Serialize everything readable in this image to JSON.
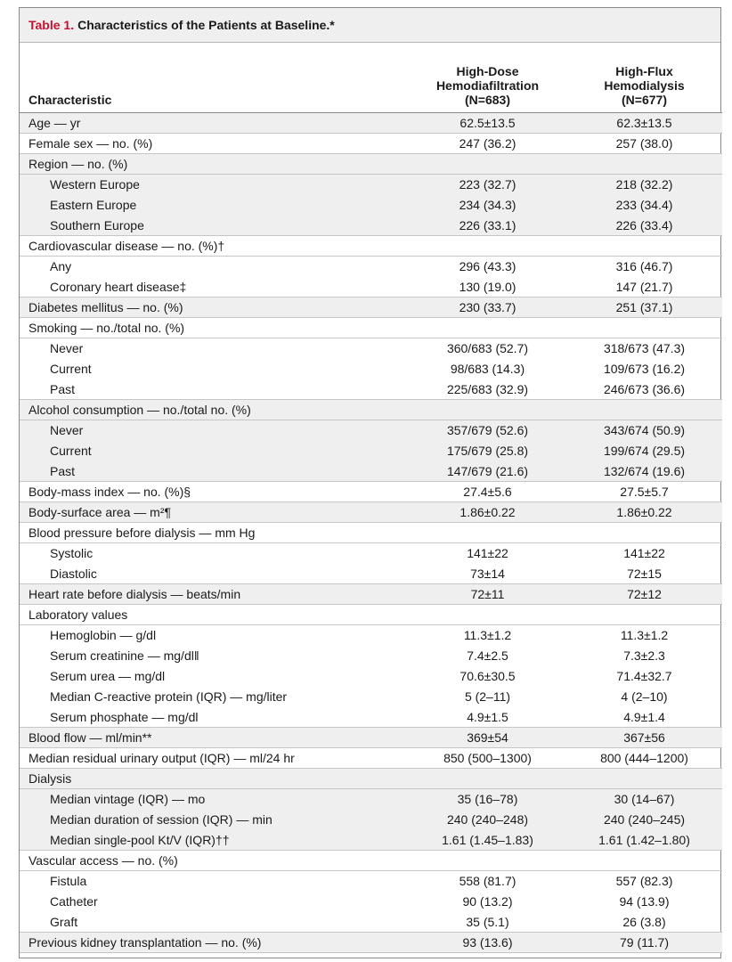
{
  "title": {
    "number": "Table 1.",
    "text": "Characteristics of the Patients at Baseline.*"
  },
  "header": {
    "characteristic": "Characteristic",
    "col1": [
      "High-Dose",
      "Hemodiafiltration",
      "(N=683)"
    ],
    "col2": [
      "High-Flux",
      "Hemodialysis",
      "(N=677)"
    ]
  },
  "rows": [
    {
      "label": "Age — yr",
      "v1": "62.5±13.5",
      "v2": "62.3±13.5",
      "indent": false
    },
    {
      "label": "Female sex — no. (%)",
      "v1": "247 (36.2)",
      "v2": "257 (38.0)",
      "indent": false
    },
    {
      "label": "Region — no. (%)",
      "v1": "",
      "v2": "",
      "indent": false
    },
    {
      "label": "Western Europe",
      "v1": "223 (32.7)",
      "v2": "218 (32.2)",
      "indent": true
    },
    {
      "label": "Eastern Europe",
      "v1": "234 (34.3)",
      "v2": "233 (34.4)",
      "indent": true
    },
    {
      "label": "Southern Europe",
      "v1": "226 (33.1)",
      "v2": "226 (33.4)",
      "indent": true
    },
    {
      "label": "Cardiovascular disease — no. (%)†",
      "v1": "",
      "v2": "",
      "indent": false
    },
    {
      "label": "Any",
      "v1": "296 (43.3)",
      "v2": "316 (46.7)",
      "indent": true
    },
    {
      "label": "Coronary heart disease‡",
      "v1": "130 (19.0)",
      "v2": "147 (21.7)",
      "indent": true
    },
    {
      "label": "Diabetes mellitus — no. (%)",
      "v1": "230 (33.7)",
      "v2": "251 (37.1)",
      "indent": false
    },
    {
      "label": "Smoking — no./total no. (%)",
      "v1": "",
      "v2": "",
      "indent": false
    },
    {
      "label": "Never",
      "v1": "360/683 (52.7)",
      "v2": "318/673 (47.3)",
      "indent": true
    },
    {
      "label": "Current",
      "v1": "98/683 (14.3)",
      "v2": "109/673 (16.2)",
      "indent": true
    },
    {
      "label": "Past",
      "v1": "225/683 (32.9)",
      "v2": "246/673 (36.6)",
      "indent": true
    },
    {
      "label": "Alcohol consumption — no./total no. (%)",
      "v1": "",
      "v2": "",
      "indent": false
    },
    {
      "label": "Never",
      "v1": "357/679 (52.6)",
      "v2": "343/674 (50.9)",
      "indent": true
    },
    {
      "label": "Current",
      "v1": "175/679 (25.8)",
      "v2": "199/674 (29.5)",
      "indent": true
    },
    {
      "label": "Past",
      "v1": "147/679 (21.6)",
      "v2": "132/674 (19.6)",
      "indent": true
    },
    {
      "label": "Body-mass index — no. (%)§",
      "v1": "27.4±5.6",
      "v2": "27.5±5.7",
      "indent": false
    },
    {
      "label": "Body-surface area — m²¶",
      "v1": "1.86±0.22",
      "v2": "1.86±0.22",
      "indent": false
    },
    {
      "label": "Blood pressure before dialysis — mm Hg",
      "v1": "",
      "v2": "",
      "indent": false
    },
    {
      "label": "Systolic",
      "v1": "141±22",
      "v2": "141±22",
      "indent": true
    },
    {
      "label": "Diastolic",
      "v1": "73±14",
      "v2": "72±15",
      "indent": true
    },
    {
      "label": "Heart rate before dialysis — beats/min",
      "v1": "72±11",
      "v2": "72±12",
      "indent": false
    },
    {
      "label": "Laboratory values",
      "v1": "",
      "v2": "",
      "indent": false
    },
    {
      "label": "Hemoglobin — g/dl",
      "v1": "11.3±1.2",
      "v2": "11.3±1.2",
      "indent": true
    },
    {
      "label": "Serum creatinine — mg/dl‖",
      "v1": "7.4±2.5",
      "v2": "7.3±2.3",
      "indent": true
    },
    {
      "label": "Serum urea — mg/dl",
      "v1": "70.6±30.5",
      "v2": "71.4±32.7",
      "indent": true
    },
    {
      "label": "Median C-reactive protein (IQR) — mg/liter",
      "v1": "5 (2–11)",
      "v2": "4 (2–10)",
      "indent": true
    },
    {
      "label": "Serum phosphate — mg/dl",
      "v1": "4.9±1.5",
      "v2": "4.9±1.4",
      "indent": true
    },
    {
      "label": "Blood flow — ml/min**",
      "v1": "369±54",
      "v2": "367±56",
      "indent": false
    },
    {
      "label": "Median residual urinary output (IQR) — ml/24 hr",
      "v1": "850 (500–1300)",
      "v2": "800 (444–1200)",
      "indent": false
    },
    {
      "label": "Dialysis",
      "v1": "",
      "v2": "",
      "indent": false
    },
    {
      "label": "Median vintage (IQR) — mo",
      "v1": "35 (16–78)",
      "v2": "30 (14–67)",
      "indent": true
    },
    {
      "label": "Median duration of session (IQR) — min",
      "v1": "240 (240–248)",
      "v2": "240 (240–245)",
      "indent": true
    },
    {
      "label": "Median single-pool Kt/V (IQR)††",
      "v1": "1.61 (1.45–1.83)",
      "v2": "1.61 (1.42–1.80)",
      "indent": true
    },
    {
      "label": "Vascular access — no. (%)",
      "v1": "",
      "v2": "",
      "indent": false
    },
    {
      "label": "Fistula",
      "v1": "558 (81.7)",
      "v2": "557 (82.3)",
      "indent": true
    },
    {
      "label": "Catheter",
      "v1": "90 (13.2)",
      "v2": "94 (13.9)",
      "indent": true
    },
    {
      "label": "Graft",
      "v1": "35 (5.1)",
      "v2": "26 (3.8)",
      "indent": true
    },
    {
      "label": "Previous kidney transplantation — no. (%)",
      "v1": "93 (13.6)",
      "v2": "79 (11.7)",
      "indent": false
    }
  ]
}
